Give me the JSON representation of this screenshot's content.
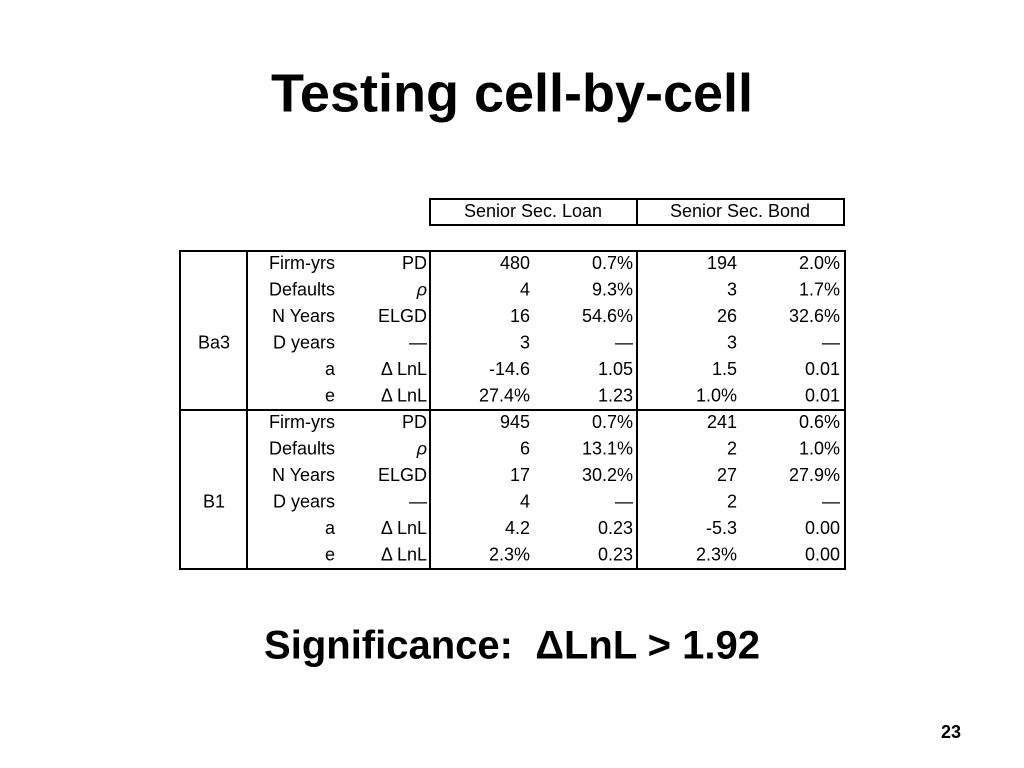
{
  "title": "Testing cell-by-cell",
  "table": {
    "headers": [
      "Senior Sec. Loan",
      "Senior Sec. Bond"
    ],
    "groups": [
      {
        "label": "Ba3",
        "rows": [
          [
            "Firm-yrs",
            "PD",
            "480",
            "0.7%",
            "194",
            "2.0%"
          ],
          [
            "Defaults",
            "ρ",
            "4",
            "9.3%",
            "3",
            "1.7%"
          ],
          [
            "N Years",
            "ELGD",
            "16",
            "54.6%",
            "26",
            "32.6%"
          ],
          [
            "D years",
            "—",
            "3",
            "—",
            "3",
            "—"
          ],
          [
            "a",
            "Δ LnL",
            "-14.6",
            "1.05",
            "1.5",
            "0.01"
          ],
          [
            "e",
            "Δ LnL",
            "27.4%",
            "1.23",
            "1.0%",
            "0.01"
          ]
        ]
      },
      {
        "label": "B1",
        "rows": [
          [
            "Firm-yrs",
            "PD",
            "945",
            "0.7%",
            "241",
            "0.6%"
          ],
          [
            "Defaults",
            "ρ",
            "6",
            "13.1%",
            "2",
            "1.0%"
          ],
          [
            "N Years",
            "ELGD",
            "17",
            "30.2%",
            "27",
            "27.9%"
          ],
          [
            "D years",
            "—",
            "4",
            "—",
            "2",
            "—"
          ],
          [
            "a",
            "Δ LnL",
            "4.2",
            "0.23",
            "-5.3",
            "0.00"
          ],
          [
            "e",
            "Δ LnL",
            "2.3%",
            "0.23",
            "2.3%",
            "0.00"
          ]
        ]
      }
    ]
  },
  "footer": "Significance:  ΔLnL > 1.92",
  "page_number": "23"
}
